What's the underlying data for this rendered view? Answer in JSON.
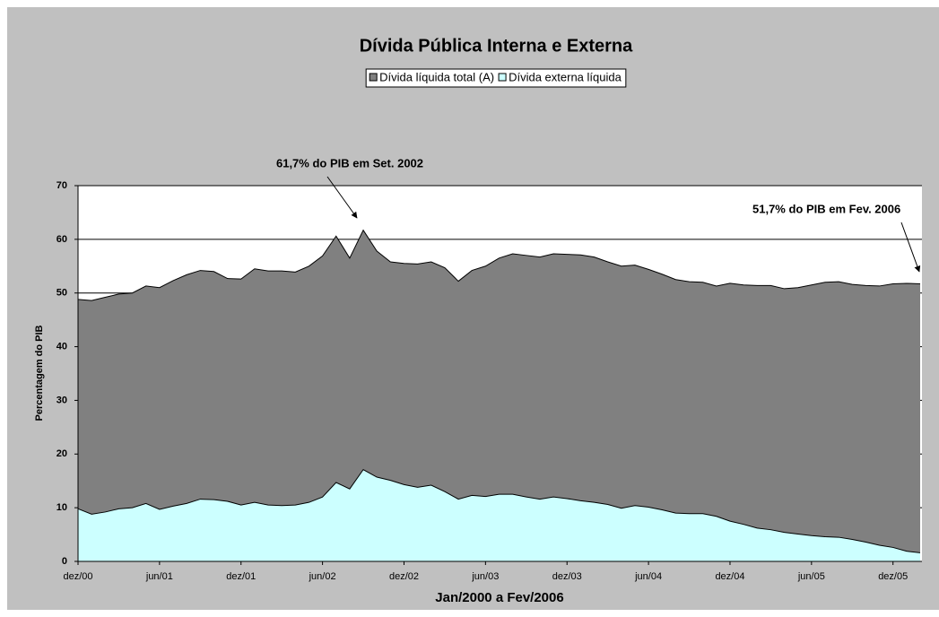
{
  "chart_data": {
    "type": "area",
    "title": "Dívida Pública Interna e Externa",
    "x_label": "Jan/2000 a Fev/2006",
    "y_label": "Percentagem do PIB",
    "categories": [
      "dez/00",
      null,
      null,
      null,
      null,
      null,
      "jun/01",
      null,
      null,
      null,
      null,
      null,
      "dez/01",
      null,
      null,
      null,
      null,
      null,
      "jun/02",
      null,
      null,
      null,
      null,
      null,
      "dez/02",
      null,
      null,
      null,
      null,
      null,
      "jun/03",
      null,
      null,
      null,
      null,
      null,
      "dez/03",
      null,
      null,
      null,
      null,
      null,
      "jun/04",
      null,
      null,
      null,
      null,
      null,
      "dez/04",
      null,
      null,
      null,
      null,
      null,
      "jun/05",
      null,
      null,
      null,
      null,
      null,
      "dez/05",
      null,
      null
    ],
    "series": [
      {
        "name": "Dívida líquida total (A)",
        "color": "#808080",
        "values": [
          48.8,
          48.6,
          49.2,
          49.8,
          50.0,
          51.3,
          51.0,
          52.3,
          53.4,
          54.2,
          54.0,
          52.7,
          52.6,
          54.5,
          54.1,
          54.1,
          53.9,
          55.0,
          56.9,
          60.6,
          56.5,
          61.7,
          57.8,
          55.8,
          55.5,
          55.4,
          55.8,
          54.7,
          52.2,
          54.2,
          55.0,
          56.5,
          57.3,
          57.0,
          56.7,
          57.3,
          57.2,
          57.1,
          56.7,
          55.8,
          55.0,
          55.2,
          54.4,
          53.5,
          52.5,
          52.1,
          52.0,
          51.3,
          51.8,
          51.5,
          51.4,
          51.4,
          50.8,
          51.0,
          51.5,
          52.0,
          52.1,
          51.6,
          51.4,
          51.3,
          51.7,
          51.8,
          51.7
        ]
      },
      {
        "name": "Dívida externa líquida",
        "color": "#ccffff",
        "values": [
          9.8,
          8.8,
          9.2,
          9.8,
          10.0,
          10.8,
          9.7,
          10.3,
          10.8,
          11.6,
          11.5,
          11.2,
          10.5,
          11.0,
          10.5,
          10.4,
          10.5,
          11.0,
          12.0,
          14.7,
          13.5,
          17.1,
          15.7,
          15.1,
          14.3,
          13.8,
          14.2,
          13.0,
          11.6,
          12.3,
          12.1,
          12.5,
          12.5,
          12.0,
          11.6,
          12.0,
          11.7,
          11.3,
          11.0,
          10.6,
          9.9,
          10.4,
          10.1,
          9.6,
          9.0,
          8.9,
          8.9,
          8.4,
          7.5,
          6.9,
          6.2,
          5.9,
          5.4,
          5.1,
          4.8,
          4.6,
          4.5,
          4.1,
          3.6,
          3.0,
          2.6,
          1.9,
          1.6
        ]
      }
    ],
    "ylim": [
      0,
      70
    ],
    "yticks": [
      0,
      10,
      20,
      30,
      40,
      50,
      60,
      70
    ],
    "grid": true,
    "annotations": [
      {
        "text": "61,7% do PIB em Set. 2002"
      },
      {
        "text": "51,7% do PIB em Fev. 2006"
      }
    ]
  }
}
